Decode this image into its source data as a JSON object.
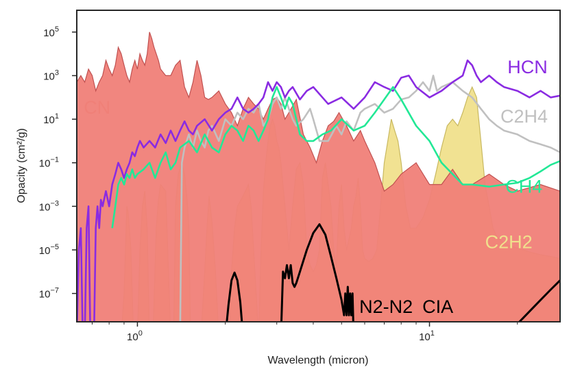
{
  "chart_data": {
    "type": "line",
    "title": "",
    "xlabel": "Wavelength (micron)",
    "ylabel": "Opacity (cm²/g)",
    "xscale": "log",
    "yscale": "log",
    "xlim": [
      0.62,
      28
    ],
    "ylim": [
      5e-09,
      1000000.0
    ],
    "grid": false,
    "x_ticks": [
      {
        "value": 1,
        "base": "10",
        "exp": "0"
      },
      {
        "value": 10,
        "base": "10",
        "exp": "1"
      }
    ],
    "y_ticks": [
      {
        "value": 100000.0,
        "base": "10",
        "exp": "5"
      },
      {
        "value": 1000.0,
        "base": "10",
        "exp": "3"
      },
      {
        "value": 10.0,
        "base": "10",
        "exp": "1"
      },
      {
        "value": 0.1,
        "base": "10",
        "exp": "−1"
      },
      {
        "value": 0.001,
        "base": "10",
        "exp": "−3"
      },
      {
        "value": 1e-05,
        "base": "10",
        "exp": "−5"
      },
      {
        "value": 1e-07,
        "base": "10",
        "exp": "−7"
      }
    ],
    "series": [
      {
        "name": "C2H2",
        "label": "C2H2",
        "color": "#f0e08c",
        "edge": "#c8b860",
        "fill": true,
        "label_pos": {
          "x": 15.5,
          "y": 1.2e-05
        },
        "x": [
          0.88,
          0.9,
          0.92,
          0.93,
          0.95,
          0.97,
          1.0,
          1.02,
          1.04,
          1.06,
          1.08,
          1.1,
          1.13,
          1.16,
          1.18,
          1.2,
          1.25,
          1.3,
          1.33,
          1.35,
          1.38,
          1.42,
          1.45,
          1.48,
          1.5,
          1.52,
          1.55,
          1.6,
          1.65,
          1.7,
          1.73,
          1.76,
          1.8,
          1.85,
          1.9,
          1.95,
          2.0,
          2.05,
          2.1,
          2.15,
          2.2,
          2.3,
          2.4,
          2.45,
          2.5,
          2.55,
          2.6,
          2.65,
          2.7,
          2.75,
          2.8,
          2.85,
          2.9,
          2.95,
          3.0,
          3.05,
          3.1,
          3.2,
          3.3,
          3.4,
          3.5,
          3.6,
          3.7,
          3.8,
          3.9,
          4.0,
          4.1,
          4.2,
          4.3,
          4.4,
          4.5,
          4.6,
          4.7,
          4.8,
          4.9,
          5.0,
          5.1,
          5.2,
          5.3,
          5.4,
          5.5,
          5.6,
          5.7,
          5.8,
          5.9,
          6.0,
          6.2,
          6.4,
          6.6,
          6.8,
          7.0,
          7.2,
          7.4,
          7.6,
          7.8,
          8.0,
          8.3,
          8.6,
          9.0,
          9.5,
          10.0,
          10.5,
          11.0,
          11.5,
          12.0,
          12.5,
          13.0,
          13.5,
          14.0,
          14.5,
          15.0,
          15.5,
          16.0,
          16.5,
          17.0,
          18.0,
          19.0,
          20.0,
          21.0,
          22.0,
          24.0,
          26.0,
          28.0
        ],
        "y": [
          1e-09,
          1e-07,
          0.001,
          0.0005,
          1e-05,
          1e-09,
          1e-09,
          1e-05,
          0.001,
          0.005,
          0.0001,
          1e-09,
          1e-09,
          0.0001,
          0.002,
          0.01,
          0.005,
          1e-09,
          1e-09,
          0.001,
          0.03,
          0.1,
          0.03,
          0.002,
          0.0001,
          1e-09,
          1e-09,
          1e-09,
          1e-09,
          1e-06,
          0.0001,
          0.003,
          0.0002,
          1e-06,
          1e-09,
          1e-09,
          1e-09,
          1e-09,
          1e-06,
          0.0001,
          0.001,
          0.003,
          0.01,
          0.001,
          1e-05,
          1e-07,
          1e-09,
          1e-05,
          0.005,
          0.1,
          1.0,
          5.0,
          10.0,
          5.0,
          1.0,
          0.5,
          0.1,
          0.001,
          1e-05,
          0.001,
          0.05,
          0.1,
          0.01,
          1e-05,
          2e-06,
          1e-06,
          2e-06,
          1e-05,
          0.02,
          0.1,
          0.01,
          0.001,
          1e-05,
          2e-06,
          0.001,
          0.01,
          0.0001,
          1e-05,
          3e-05,
          0.0001,
          0.001,
          0.003,
          0.02,
          0.001,
          1e-05,
          4e-06,
          3e-06,
          4e-06,
          1e-05,
          0.001,
          0.1,
          1.0,
          10.0,
          3.0,
          1.0,
          0.1,
          0.001,
          0.0001,
          0.0001,
          0.0003,
          0.002,
          0.03,
          0.5,
          5.0,
          10.0,
          5.0,
          20.0,
          100.0,
          300.0,
          100.0,
          1.0,
          0.01,
          0.001,
          0.0001,
          4e-05,
          2e-05,
          1.5e-05,
          1.2e-05,
          1e-05,
          8e-06,
          6e-06,
          5e-06,
          4e-06
        ]
      },
      {
        "name": "CN",
        "label": "CN",
        "color": "#f08078",
        "edge": "#c05050",
        "fill": true,
        "label_pos": {
          "x": 0.655,
          "y": 18
        },
        "x": [
          0.62,
          0.64,
          0.66,
          0.68,
          0.7,
          0.72,
          0.74,
          0.76,
          0.78,
          0.8,
          0.82,
          0.84,
          0.86,
          0.88,
          0.9,
          0.92,
          0.94,
          0.96,
          0.98,
          1.0,
          1.02,
          1.04,
          1.06,
          1.08,
          1.1,
          1.12,
          1.14,
          1.16,
          1.18,
          1.2,
          1.25,
          1.3,
          1.35,
          1.4,
          1.45,
          1.5,
          1.55,
          1.6,
          1.65,
          1.7,
          1.75,
          1.8,
          1.9,
          2.0,
          2.1,
          2.2,
          2.3,
          2.4,
          2.5,
          2.6,
          2.7,
          2.8,
          2.9,
          3.0,
          3.1,
          3.2,
          3.3,
          3.5,
          3.7,
          3.9,
          4.1,
          4.3,
          4.5,
          4.7,
          4.9,
          5.2,
          5.5,
          5.8,
          6.0,
          6.5,
          7.0,
          7.5,
          8.0,
          9.0,
          10.0,
          11.0,
          12.0,
          13.0,
          14.0,
          16.0,
          18.0,
          20.0,
          24.0,
          28.0
        ],
        "y": [
          500.0,
          1000.0,
          500.0,
          2000.0,
          1000.0,
          200.0,
          500.0,
          1000.0,
          5000.0,
          2000.0,
          1000.0,
          3000.0,
          20000.0,
          10000.0,
          3000.0,
          1000.0,
          500.0,
          2000.0,
          5000.0,
          2000.0,
          10000.0,
          5000.0,
          3000.0,
          10000.0,
          100000.0,
          50000.0,
          20000.0,
          10000.0,
          5000.0,
          2000.0,
          1000.0,
          1000.0,
          3000.0,
          5000.0,
          300.0,
          100.0,
          500.0,
          5000.0,
          1000.0,
          100.0,
          80.0,
          100.0,
          200.0,
          50.0,
          20.0,
          5.0,
          30.0,
          100.0,
          50.0,
          30.0,
          10.0,
          30.0,
          80.0,
          100.0,
          50.0,
          10.0,
          20.0,
          80.0,
          2.0,
          0.5,
          0.1,
          1.0,
          5.0,
          8.0,
          20.0,
          5.0,
          1.0,
          3.0,
          1.0,
          0.1,
          0.005,
          0.01,
          0.03,
          0.1,
          0.01,
          0.01,
          0.05,
          0.01,
          0.01,
          0.03,
          0.01,
          0.005,
          0.01,
          0.005
        ]
      },
      {
        "name": "C2H4",
        "label": "C2H4",
        "color": "#c0c0c0",
        "edge": "#b0b0b0",
        "fill": false,
        "label_pos": {
          "x": 17.5,
          "y": 7
        },
        "x": [
          1.4,
          1.42,
          1.45,
          1.5,
          1.55,
          1.6,
          1.65,
          1.7,
          1.75,
          1.8,
          1.9,
          2.0,
          2.1,
          2.2,
          2.3,
          2.4,
          2.5,
          2.6,
          2.7,
          2.8,
          2.9,
          3.0,
          3.1,
          3.2,
          3.3,
          3.4,
          3.5,
          3.7,
          3.9,
          4.0,
          4.2,
          4.5,
          4.8,
          5.0,
          5.2,
          5.5,
          5.8,
          6.0,
          6.5,
          7.0,
          7.5,
          8.0,
          8.5,
          9.0,
          9.5,
          10.0,
          10.3,
          10.6,
          11.0,
          12.0,
          13.0,
          14.0,
          15.0,
          16.0,
          17.0,
          18.0,
          20.0,
          22.0,
          24.0,
          26.0,
          28.0
        ],
        "y": [
          1e-09,
          0.1,
          0.5,
          2.0,
          0.5,
          3.0,
          1.0,
          0.5,
          3.0,
          5.0,
          1.0,
          10.0,
          5.0,
          20.0,
          10.0,
          30.0,
          20.0,
          50.0,
          5.0,
          10.0,
          50.0,
          100.0,
          30.0,
          100.0,
          30.0,
          10.0,
          5.0,
          10.0,
          30.0,
          10.0,
          1.0,
          1.0,
          5.0,
          2.0,
          8.0,
          3.0,
          20.0,
          30.0,
          50.0,
          20.0,
          30.0,
          80.0,
          100.0,
          200.0,
          500.0,
          200.0,
          1000.0,
          200.0,
          300.0,
          500.0,
          200.0,
          100.0,
          30.0,
          10.0,
          5.0,
          3.0,
          2.0,
          1.0,
          0.7,
          0.5,
          0.3
        ]
      },
      {
        "name": "HCN",
        "label": "HCN",
        "color": "#8a2be2",
        "edge": "#8a2be2",
        "fill": false,
        "label_pos": {
          "x": 18.5,
          "y": 1300
        },
        "x": [
          0.62,
          0.63,
          0.64,
          0.65,
          0.66,
          0.67,
          0.68,
          0.69,
          0.7,
          0.71,
          0.72,
          0.73,
          0.74,
          0.75,
          0.76,
          0.78,
          0.8,
          0.82,
          0.84,
          0.86,
          0.88,
          0.9,
          0.92,
          0.94,
          0.96,
          0.98,
          1.0,
          1.02,
          1.05,
          1.1,
          1.15,
          1.2,
          1.25,
          1.3,
          1.35,
          1.4,
          1.45,
          1.5,
          1.55,
          1.6,
          1.7,
          1.8,
          1.9,
          2.0,
          2.1,
          2.2,
          2.3,
          2.4,
          2.5,
          2.6,
          2.7,
          2.8,
          2.9,
          3.0,
          3.1,
          3.2,
          3.3,
          3.4,
          3.6,
          3.8,
          4.0,
          4.5,
          5.0,
          5.5,
          6.0,
          6.5,
          7.0,
          7.5,
          8.0,
          8.5,
          9.0,
          10.0,
          11.0,
          12.0,
          13.0,
          13.5,
          14.0,
          14.5,
          15.0,
          16.0,
          17.0,
          18.0,
          20.0,
          22.0,
          24.0,
          26.0,
          28.0
        ],
        "y": [
          1e-09,
          1e-05,
          0.0001,
          1e-09,
          1e-09,
          0.0001,
          0.001,
          1e-09,
          1e-09,
          1e-09,
          0.0001,
          0.001,
          0.0001,
          0.002,
          0.001,
          0.005,
          0.001,
          0.01,
          0.03,
          0.1,
          0.05,
          0.02,
          0.05,
          0.1,
          0.3,
          0.2,
          0.5,
          1.0,
          0.5,
          1.0,
          0.5,
          2.0,
          0.8,
          3.0,
          1.0,
          3.0,
          8.0,
          3.0,
          2.0,
          5.0,
          10.0,
          3.0,
          10.0,
          20.0,
          30.0,
          100.0,
          30.0,
          20.0,
          30.0,
          50.0,
          100.0,
          500.0,
          200.0,
          500.0,
          300.0,
          100.0,
          200.0,
          300.0,
          80.0,
          200.0,
          300.0,
          50.0,
          100.0,
          30.0,
          100.0,
          500.0,
          300.0,
          200.0,
          800.0,
          1000.0,
          300.0,
          100.0,
          200.0,
          500.0,
          1000.0,
          5000.0,
          3000.0,
          1000.0,
          500.0,
          1000.0,
          500.0,
          300.0,
          200.0,
          100.0,
          200.0,
          100.0,
          120.0
        ]
      },
      {
        "name": "CH4",
        "label": "CH4",
        "color": "#22e896",
        "edge": "#22e896",
        "fill": false,
        "label_pos": {
          "x": 18.2,
          "y": 0.0042
        },
        "x": [
          0.82,
          0.84,
          0.86,
          0.88,
          0.9,
          0.92,
          0.94,
          0.96,
          0.98,
          1.0,
          1.05,
          1.1,
          1.15,
          1.2,
          1.25,
          1.3,
          1.35,
          1.4,
          1.5,
          1.6,
          1.7,
          1.8,
          1.9,
          2.0,
          2.1,
          2.2,
          2.3,
          2.4,
          2.5,
          2.6,
          2.7,
          2.8,
          2.9,
          3.0,
          3.1,
          3.2,
          3.3,
          3.4,
          3.6,
          3.8,
          4.0,
          4.3,
          4.6,
          5.0,
          5.5,
          6.0,
          6.5,
          7.0,
          7.5,
          8.0,
          9.0,
          10.0,
          11.0,
          12.0,
          13.0,
          14.0,
          16.0,
          18.0,
          20.0,
          22.0,
          24.0,
          26.0,
          28.0
        ],
        "y": [
          0.0001,
          0.001,
          0.01,
          0.02,
          0.01,
          0.03,
          0.02,
          0.05,
          0.02,
          0.03,
          0.05,
          0.1,
          0.02,
          0.1,
          0.3,
          0.05,
          0.1,
          0.5,
          1.0,
          0.3,
          2.0,
          0.5,
          0.3,
          2.0,
          5.0,
          3.0,
          1.0,
          5.0,
          3.0,
          1.0,
          3.0,
          10.0,
          100.0,
          300.0,
          100.0,
          30.0,
          100.0,
          50.0,
          2.0,
          1.0,
          1.0,
          2.0,
          3.0,
          10.0,
          3.0,
          5.0,
          20.0,
          80.0,
          300.0,
          80.0,
          5.0,
          1.0,
          0.1,
          0.03,
          0.01,
          0.01,
          0.008,
          0.01,
          0.012,
          0.02,
          0.04,
          0.08,
          0.12
        ]
      },
      {
        "name": "N2-N2 CIA",
        "label": "N2-N2",
        "label_sub": "CIA",
        "color": "#000000",
        "edge": "#000000",
        "fill": false,
        "label_pos": {
          "x": 5.75,
          "y": 1.3e-08
        },
        "x": [
          2.0,
          2.05,
          2.1,
          2.15,
          2.2,
          2.25,
          2.3,
          2.35,
          2.4,
          3.1,
          3.15,
          3.2,
          3.25,
          3.3,
          3.35,
          3.4,
          3.45,
          3.5,
          3.6,
          3.8,
          4.0,
          4.2,
          4.4,
          4.6,
          4.8,
          5.0,
          5.1,
          5.15,
          5.2,
          5.25,
          5.3,
          5.35,
          5.4,
          5.45,
          5.5,
          5.55,
          18.0,
          20.0,
          22.0,
          24.0,
          26.0,
          28.0
        ],
        "y": [
          1e-09,
          3e-08,
          4e-07,
          9e-07,
          4e-07,
          4e-08,
          1e-09,
          1e-09,
          1e-09,
          1e-09,
          1e-06,
          5e-07,
          2e-06,
          5e-07,
          2e-06,
          3e-07,
          2e-07,
          3e-07,
          1e-06,
          1e-05,
          6e-05,
          0.00015,
          5e-05,
          5e-06,
          5e-07,
          5e-08,
          1e-08,
          1e-07,
          1e-08,
          2e-07,
          1e-08,
          1e-07,
          1e-08,
          1e-07,
          1e-09,
          1e-09,
          1e-09,
          4e-09,
          1.5e-08,
          5e-08,
          1.5e-07,
          4e-07
        ]
      }
    ]
  }
}
